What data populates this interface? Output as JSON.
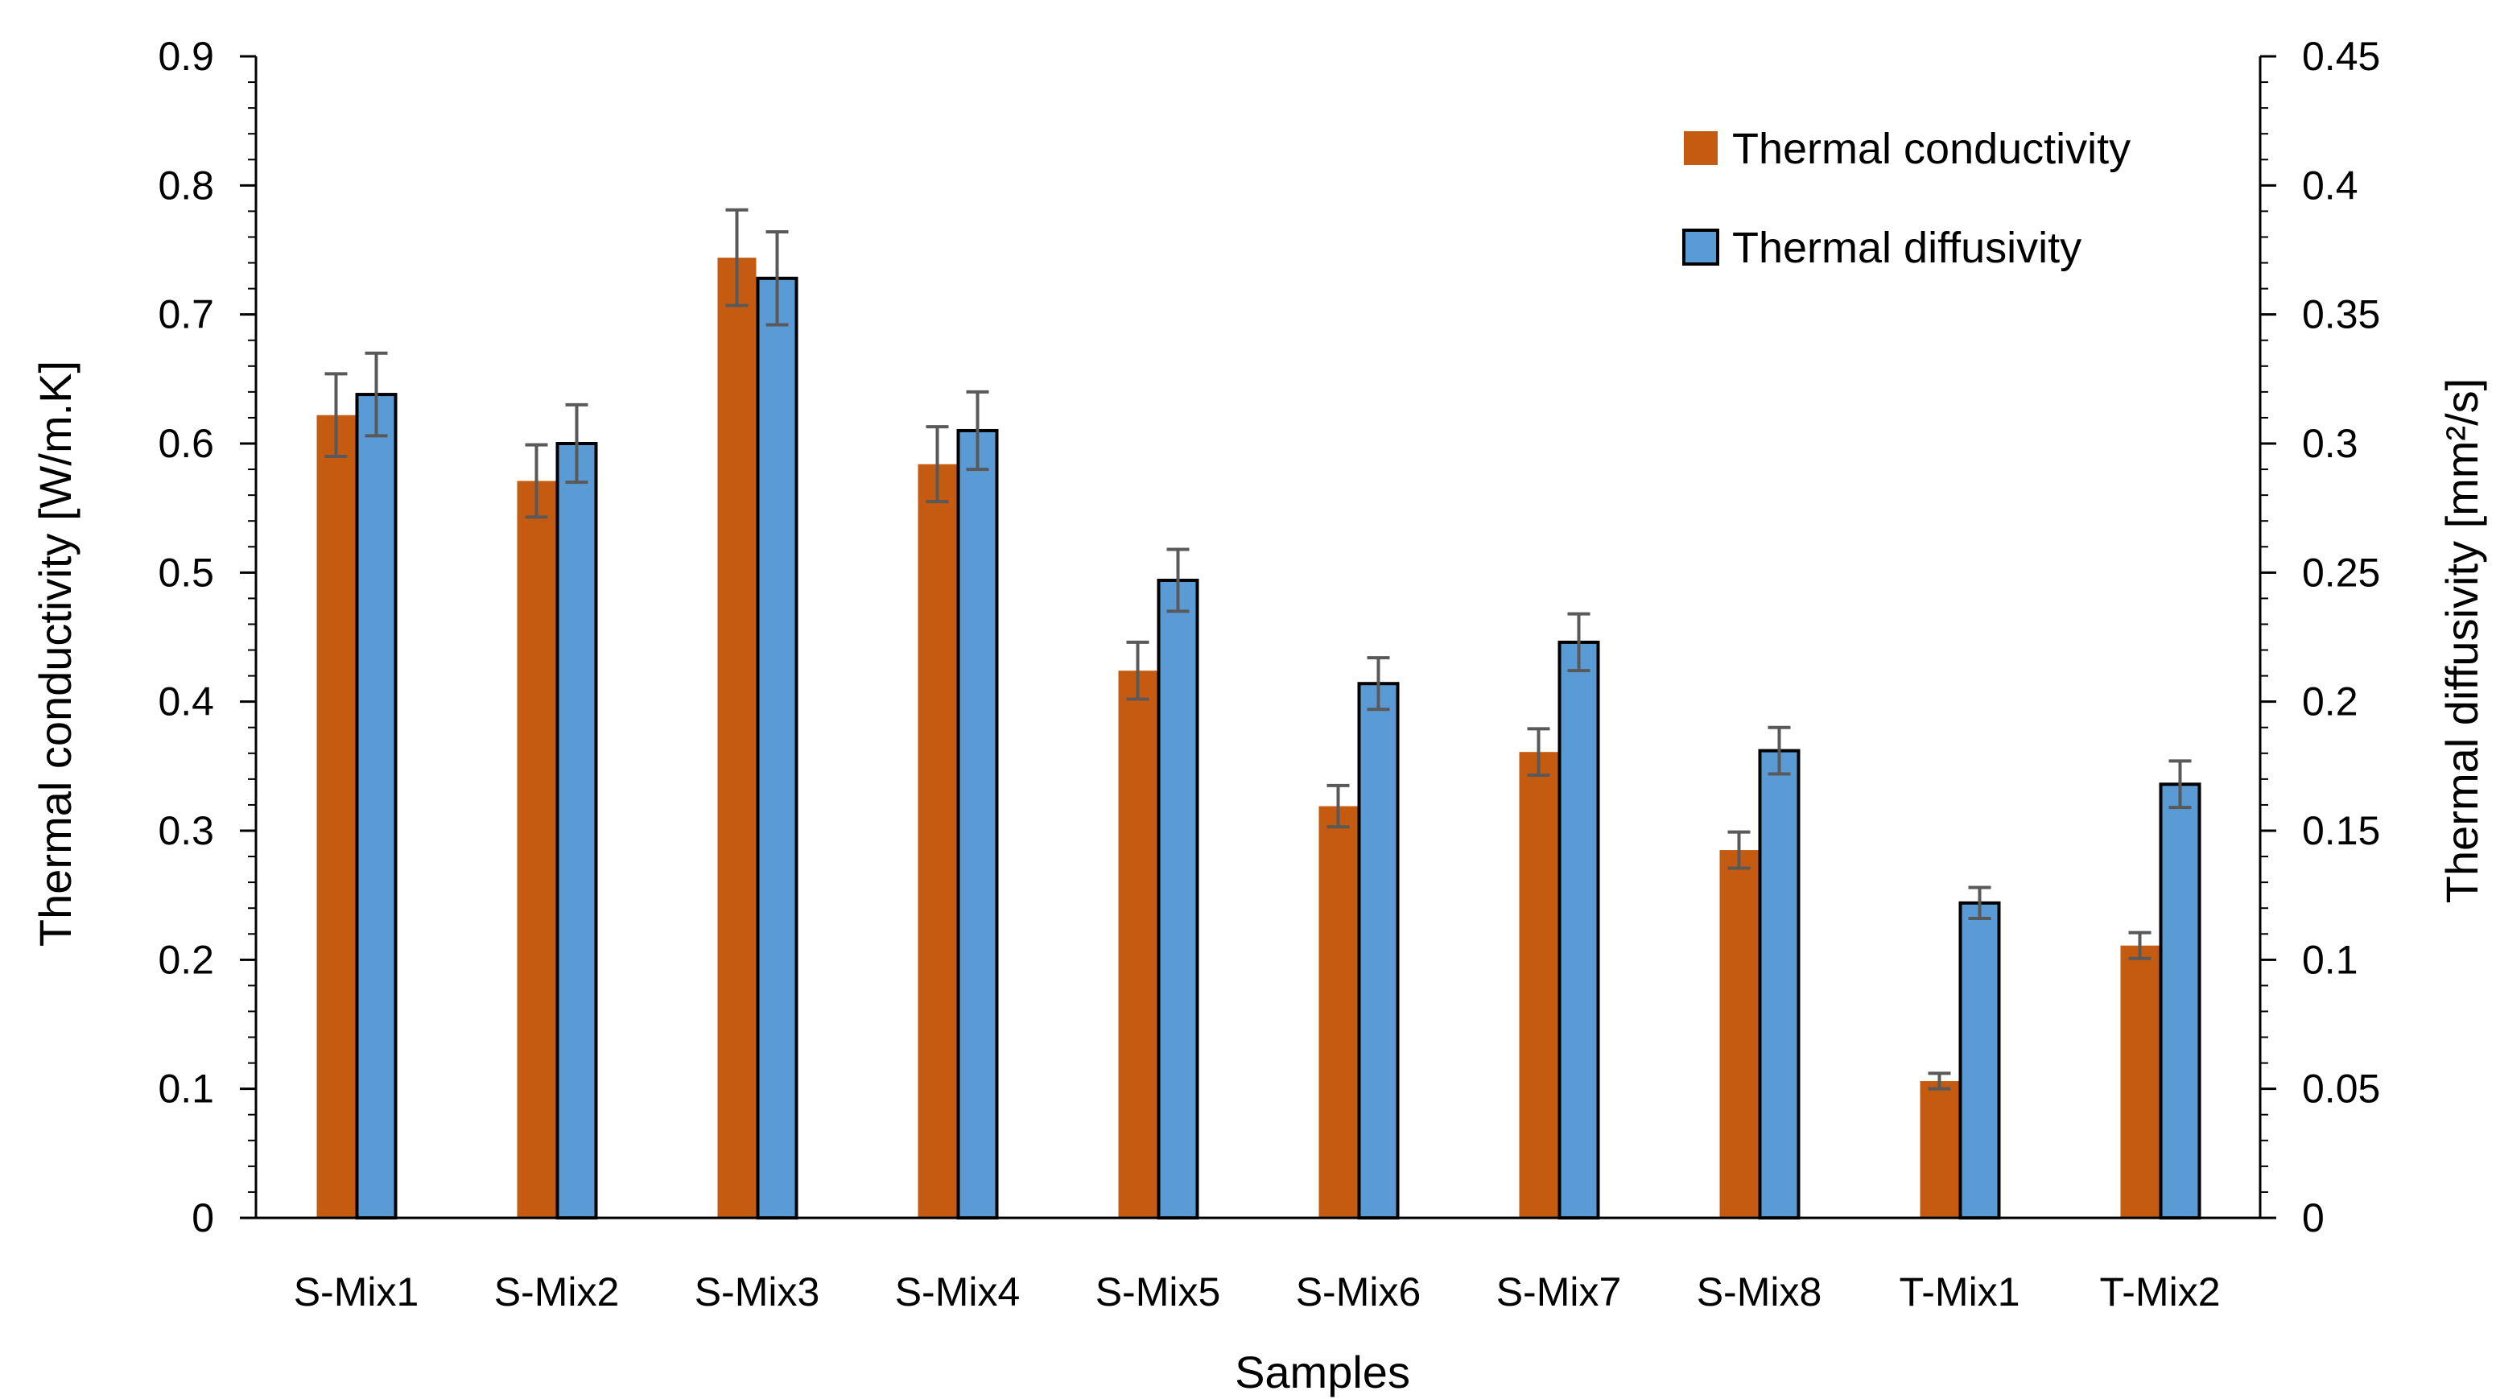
{
  "chart_data": {
    "type": "bar",
    "title": "",
    "xlabel": "Samples",
    "ylabel": "Thermal conductivity [W/m.K]",
    "y2label": "Thermal diffusivity [mm²/s]",
    "ylim": [
      0,
      0.9
    ],
    "y2lim": [
      0,
      0.45
    ],
    "yticks": [
      "0",
      "0.1",
      "0.2",
      "0.3",
      "0.4",
      "0.5",
      "0.6",
      "0.7",
      "0.8",
      "0.9"
    ],
    "y2ticks": [
      "0",
      "0.05",
      "0.1",
      "0.15",
      "0.2",
      "0.25",
      "0.3",
      "0.35",
      "0.4",
      "0.45"
    ],
    "categories": [
      "S-Mix1",
      "S-Mix2",
      "S-Mix3",
      "S-Mix4",
      "S-Mix5",
      "S-Mix6",
      "S-Mix7",
      "S-Mix8",
      "T-Mix1",
      "T-Mix2"
    ],
    "legend_position": "top-right",
    "series": [
      {
        "name": "Thermal conductivity",
        "axis": "left",
        "color": "#c55a11",
        "values": [
          0.622,
          0.571,
          0.744,
          0.584,
          0.424,
          0.319,
          0.361,
          0.285,
          0.106,
          0.211
        ],
        "errors": [
          0.032,
          0.028,
          0.037,
          0.029,
          0.022,
          0.016,
          0.018,
          0.014,
          0.006,
          0.01
        ]
      },
      {
        "name": "Thermal diffusivity",
        "axis": "right",
        "color": "#5b9bd5",
        "values": [
          0.319,
          0.3,
          0.364,
          0.305,
          0.247,
          0.207,
          0.223,
          0.181,
          0.122,
          0.168
        ],
        "errors": [
          0.016,
          0.015,
          0.018,
          0.015,
          0.012,
          0.01,
          0.011,
          0.009,
          0.006,
          0.009
        ]
      }
    ]
  }
}
